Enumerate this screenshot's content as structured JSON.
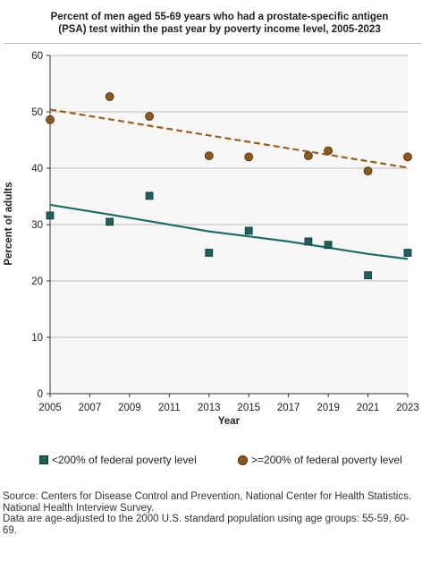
{
  "chart_data": {
    "type": "scatter",
    "title": "Percent of men aged 55-69 years who had a prostate-specific antigen (PSA) test within the past year by poverty income level, 2005-2023",
    "title_lines": [
      "Percent of men aged 55-69 years who had a prostate-specific antigen",
      "(PSA) test within the past year by poverty income level, 2005-2023"
    ],
    "xlabel": "Year",
    "ylabel": "Percent of adults",
    "xlim": [
      2005,
      2023
    ],
    "ylim": [
      0,
      60
    ],
    "x_ticks": [
      2005,
      2007,
      2009,
      2011,
      2013,
      2015,
      2017,
      2019,
      2021,
      2023
    ],
    "y_ticks": [
      0,
      10,
      20,
      30,
      40,
      50,
      60
    ],
    "grid": true,
    "legend_position": "bottom",
    "series": [
      {
        "name": "<200% of federal poverty level",
        "marker": "square",
        "color": "#1f5f5b",
        "trend_color": "#1f6e66",
        "trend_style": "solid",
        "x": [
          2005,
          2008,
          2010,
          2013,
          2015,
          2018,
          2019,
          2021,
          2023
        ],
        "y": [
          31.6,
          30.5,
          35.1,
          25.0,
          28.9,
          27.0,
          26.4,
          21.0,
          25.0
        ],
        "trend": [
          [
            2005,
            33.5
          ],
          [
            2009,
            31.2
          ],
          [
            2013,
            28.8
          ],
          [
            2017,
            27.0
          ],
          [
            2021,
            24.8
          ],
          [
            2023,
            23.9
          ]
        ]
      },
      {
        "name": ">=200% of federal poverty level",
        "marker": "circle",
        "color": "#8b5a1a",
        "trend_color": "#9a5f1c",
        "trend_style": "dashed",
        "x": [
          2005,
          2008,
          2010,
          2013,
          2015,
          2018,
          2019,
          2021,
          2023
        ],
        "y": [
          48.6,
          52.7,
          49.2,
          42.2,
          42.0,
          42.2,
          43.1,
          39.5,
          42.0
        ],
        "trend": [
          [
            2005,
            50.4
          ],
          [
            2023,
            40.1
          ]
        ]
      }
    ]
  },
  "source_lines": [
    "Source: Centers for Disease Control and Prevention, National Center for Health Statistics.",
    "National Health Interview Survey.",
    "Data are age-adjusted to the 2000 U.S. standard population using age groups: 55-59, 60-",
    "69."
  ]
}
